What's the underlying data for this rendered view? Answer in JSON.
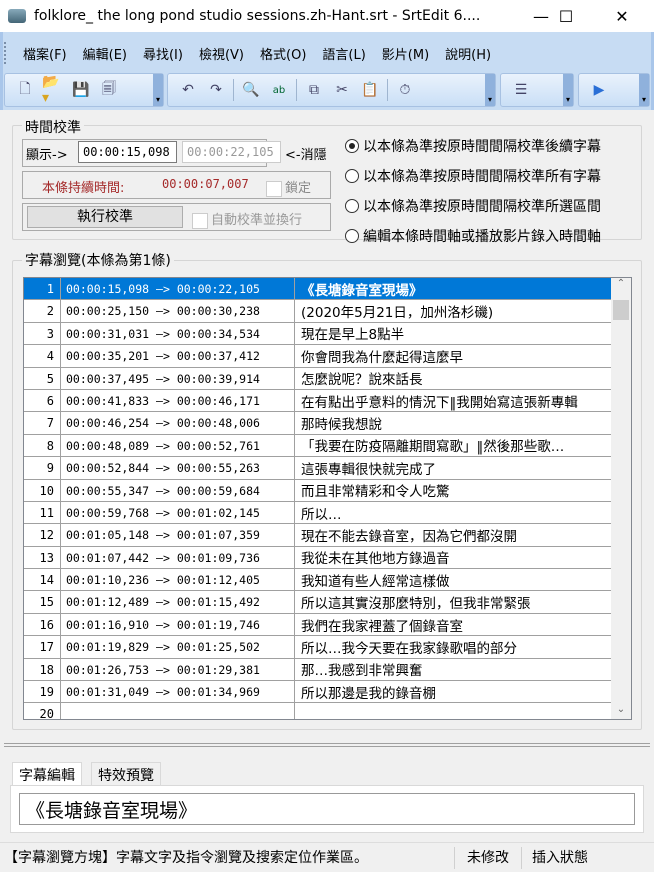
{
  "window": {
    "title": "folklore_ the long pond studio sessions.zh-Hant.srt - SrtEdit 6....",
    "minimize": "—",
    "maximize": "☐",
    "close": "✕"
  },
  "menu": [
    "檔案(F)",
    "編輯(E)",
    "尋找(I)",
    "檢視(V)",
    "格式(O)",
    "語言(L)",
    "影片(M)",
    "說明(H)"
  ],
  "toolbar": {
    "icons": [
      "new-file",
      "open-folder",
      "save",
      "save-as",
      "undo",
      "redo",
      "find",
      "replace",
      "copy",
      "cut",
      "paste",
      "timer",
      "list",
      "play"
    ]
  },
  "calibration": {
    "title": "時間校準",
    "show_label": "顯示->",
    "start_time": "00:00:15,098",
    "end_time": "00:00:22,105",
    "hide_label": "<-消隱",
    "duration_label": "本條持續時間:",
    "duration": "00:00:07,007",
    "lock_label": "鎖定",
    "run_button": "執行校準",
    "auto_label": "自動校準並換行",
    "options": [
      "以本條為準按原時間間隔校準後續字幕",
      "以本條為準按原時間間隔校準所有字幕",
      "以本條為準按原時間間隔校準所選區間",
      "編輯本條時間軸或播放影片錄入時間軸"
    ],
    "selected_option": 0
  },
  "browser": {
    "title": "字幕瀏覽(本條為第1條)",
    "selected_row": 1,
    "rows": [
      {
        "n": "1",
        "start": "00:00:15,098",
        "end": "00:00:22,105",
        "text": "《長塘錄音室現場》"
      },
      {
        "n": "2",
        "start": "00:00:25,150",
        "end": "00:00:30,238",
        "text": "(2020年5月21日，加州洛杉磯)"
      },
      {
        "n": "3",
        "start": "00:00:31,031",
        "end": "00:00:34,534",
        "text": "現在是早上8點半"
      },
      {
        "n": "4",
        "start": "00:00:35,201",
        "end": "00:00:37,412",
        "text": "你會問我為什麼起得這麼早"
      },
      {
        "n": "5",
        "start": "00:00:37,495",
        "end": "00:00:39,914",
        "text": "怎麼說呢？說來話長"
      },
      {
        "n": "6",
        "start": "00:00:41,833",
        "end": "00:00:46,171",
        "text": "在有點出乎意料的情況下‖我開始寫這張新專輯"
      },
      {
        "n": "7",
        "start": "00:00:46,254",
        "end": "00:00:48,006",
        "text": "那時候我想說"
      },
      {
        "n": "8",
        "start": "00:00:48,089",
        "end": "00:00:52,761",
        "text": "「我要在防疫隔離期間寫歌」‖然後那些歌…"
      },
      {
        "n": "9",
        "start": "00:00:52,844",
        "end": "00:00:55,263",
        "text": "這張專輯很快就完成了"
      },
      {
        "n": "10",
        "start": "00:00:55,347",
        "end": "00:00:59,684",
        "text": "而且非常精彩和令人吃驚"
      },
      {
        "n": "11",
        "start": "00:00:59,768",
        "end": "00:01:02,145",
        "text": "所以…"
      },
      {
        "n": "12",
        "start": "00:01:05,148",
        "end": "00:01:07,359",
        "text": "現在不能去錄音室，因為它們都沒開"
      },
      {
        "n": "13",
        "start": "00:01:07,442",
        "end": "00:01:09,736",
        "text": "我從未在其他地方錄過音"
      },
      {
        "n": "14",
        "start": "00:01:10,236",
        "end": "00:01:12,405",
        "text": "我知道有些人經常這樣做"
      },
      {
        "n": "15",
        "start": "00:01:12,489",
        "end": "00:01:15,492",
        "text": "所以這其實沒那麼特別，但我非常緊張"
      },
      {
        "n": "16",
        "start": "00:01:16,910",
        "end": "00:01:19,746",
        "text": "我們在我家裡蓋了個錄音室"
      },
      {
        "n": "17",
        "start": "00:01:19,829",
        "end": "00:01:25,502",
        "text": "所以…我今天要在我家錄歌唱的部分"
      },
      {
        "n": "18",
        "start": "00:01:26,753",
        "end": "00:01:29,381",
        "text": "那…我感到非常興奮"
      },
      {
        "n": "19",
        "start": "00:01:31,049",
        "end": "00:01:34,969",
        "text": "所以那邊是我的錄音棚"
      },
      {
        "n": "20",
        "start": "",
        "end": "",
        "text": ""
      }
    ],
    "arrow": "—>"
  },
  "editor": {
    "tabs": [
      "字幕編輯",
      "特效預覽"
    ],
    "active_tab": 0,
    "text": "《長塘錄音室現場》"
  },
  "status": {
    "hint": "【字幕瀏覽方塊】字幕文字及指令瀏覽及搜索定位作業區。",
    "modified": "未修改",
    "mode": "插入狀態"
  },
  "colors": {
    "selection": "#0078d7",
    "duration": "#a52a2a",
    "toolbar": "#c7dcf3"
  }
}
